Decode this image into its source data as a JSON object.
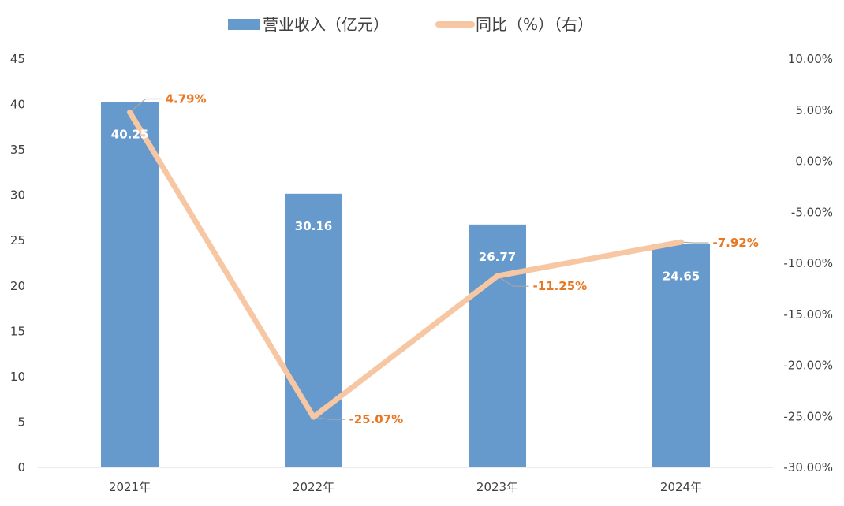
{
  "chart_data": {
    "type": "bar",
    "categories": [
      "2021年",
      "2022年",
      "2023年",
      "2024年"
    ],
    "series": [
      {
        "name": "营业收入（亿元）",
        "type": "bar",
        "axis": "left",
        "values": [
          40.25,
          30.16,
          26.77,
          24.65
        ],
        "labels": [
          "40.25",
          "30.16",
          "26.77",
          "24.65"
        ],
        "color": "#6699cc"
      },
      {
        "name": "同比（%）（右）",
        "type": "line",
        "axis": "right",
        "values": [
          4.79,
          -25.07,
          -11.25,
          -7.92
        ],
        "labels": [
          "4.79%",
          "-25.07%",
          "-11.25%",
          "-7.92%"
        ],
        "color": "#f7c7a3"
      }
    ],
    "y_left": {
      "range": [
        0,
        45
      ],
      "ticks": [
        0,
        5,
        10,
        15,
        20,
        25,
        30,
        35,
        40,
        45
      ],
      "tick_labels": [
        "0",
        "5",
        "10",
        "15",
        "20",
        "25",
        "30",
        "35",
        "40",
        "45"
      ]
    },
    "y_right": {
      "range": [
        -30,
        10
      ],
      "ticks": [
        -30,
        -25,
        -20,
        -15,
        -10,
        -5,
        0,
        5,
        10
      ],
      "tick_labels": [
        "-30.00%",
        "-25.00%",
        "-20.00%",
        "-15.00%",
        "-10.00%",
        "-5.00%",
        "0.00%",
        "5.00%",
        "10.00%"
      ]
    },
    "grid": false,
    "legend_position": "top",
    "line_label_color": "#e87722",
    "bar_label_color": "#ffffff"
  }
}
